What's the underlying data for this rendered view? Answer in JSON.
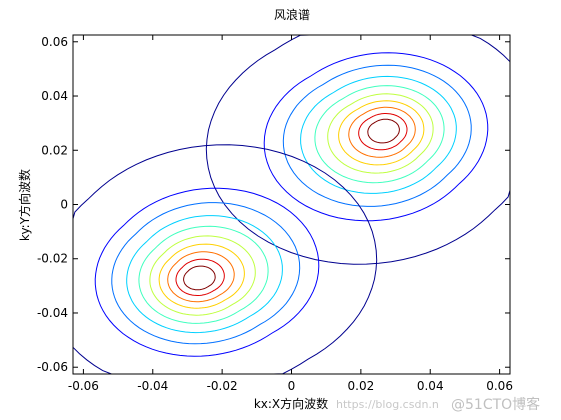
{
  "chart_data": {
    "type": "contour",
    "title": "风浪谱",
    "xlabel": "kx:X方向波数",
    "ylabel": "ky:Y方向波数",
    "xlim": [
      -0.063,
      0.063
    ],
    "ylim": [
      -0.0625,
      0.0625
    ],
    "xticks": [
      -0.06,
      -0.04,
      -0.02,
      0,
      0.02,
      0.04,
      0.06
    ],
    "xtick_labels": [
      "-0.06",
      "-0.04",
      "-0.02",
      "0",
      "0.02",
      "0.04",
      "0.06"
    ],
    "yticks": [
      -0.06,
      -0.04,
      -0.02,
      0,
      0.02,
      0.04,
      0.06
    ],
    "ytick_labels": [
      "-0.06",
      "-0.04",
      "-0.02",
      "0",
      "0.02",
      "0.04",
      "0.06"
    ],
    "grid": false,
    "peaks": [
      {
        "x": 0.027,
        "y": 0.0275
      },
      {
        "x": -0.027,
        "y": -0.0275
      }
    ],
    "contour_levels": [
      {
        "level": 1,
        "color": "#00008f"
      },
      {
        "level": 2,
        "color": "#0000ff"
      },
      {
        "level": 3,
        "color": "#0070ff"
      },
      {
        "level": 4,
        "color": "#00d0ff"
      },
      {
        "level": 5,
        "color": "#40ffbf"
      },
      {
        "level": 6,
        "color": "#bfff40"
      },
      {
        "level": 7,
        "color": "#ffd000"
      },
      {
        "level": 8,
        "color": "#ff7000"
      },
      {
        "level": 9,
        "color": "#e00000"
      },
      {
        "level": 10,
        "color": "#800000"
      }
    ]
  },
  "watermark": {
    "url_text": "https://blog.csdn.n",
    "brand_text": "@51CTO博客"
  }
}
